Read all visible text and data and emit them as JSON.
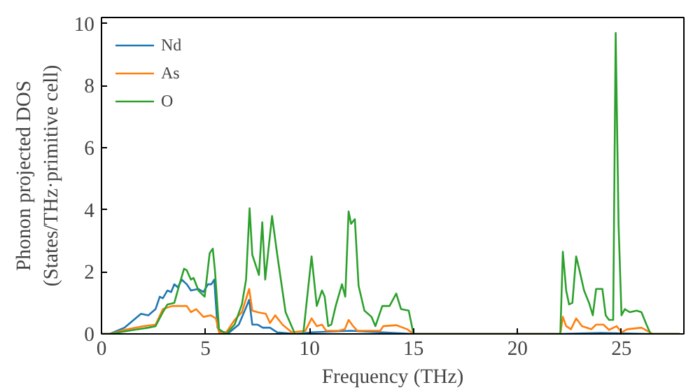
{
  "chart_data": {
    "type": "line",
    "xlabel": "Frequency (THz)",
    "ylabel": "Phonon projected DOS\n(States/THz·primitive cell)",
    "xlim": [
      0,
      28
    ],
    "ylim": [
      0,
      10.2
    ],
    "xticks": [
      0,
      5,
      10,
      15,
      20,
      25
    ],
    "yticks": [
      0,
      2,
      4,
      6,
      8,
      10
    ],
    "grid": false,
    "legend": "top left",
    "series": [
      {
        "name": "Nd",
        "color": "#1f77b4",
        "x": [
          0,
          0.4,
          1.1,
          1.9,
          2.25,
          2.6,
          2.8,
          2.95,
          3.17,
          3.35,
          3.5,
          3.67,
          3.86,
          4.1,
          4.3,
          4.66,
          4.9,
          5.12,
          5.28,
          5.42,
          5.58,
          5.8,
          6.15,
          6.6,
          6.95,
          7.1,
          7.25,
          7.5,
          7.75,
          8.1,
          8.45,
          9.35,
          10.1,
          12.0,
          15.0,
          22.0,
          24.0,
          26.4,
          27.8
        ],
        "values": [
          0,
          0,
          0.2,
          0.65,
          0.6,
          0.8,
          1.2,
          1.15,
          1.4,
          1.35,
          1.6,
          1.5,
          1.75,
          1.6,
          1.4,
          1.45,
          1.35,
          1.6,
          1.6,
          1.75,
          0.2,
          0.05,
          0.05,
          0.3,
          0.85,
          1.1,
          0.3,
          0.3,
          0.2,
          0.2,
          0.05,
          0,
          0.05,
          0.1,
          0,
          0,
          0.03,
          0,
          0
        ]
      },
      {
        "name": "As",
        "color": "#ff7f0e",
        "x": [
          0,
          0.4,
          1.1,
          2.0,
          2.6,
          2.95,
          3.4,
          4.1,
          4.3,
          4.55,
          4.9,
          5.25,
          5.5,
          5.65,
          6.0,
          6.4,
          6.75,
          7.1,
          7.25,
          7.5,
          7.9,
          8.1,
          8.35,
          8.7,
          9.15,
          9.8,
          10.1,
          10.35,
          10.6,
          10.8,
          11.4,
          11.7,
          11.88,
          12.1,
          12.3,
          13.4,
          13.55,
          14.17,
          14.7,
          15.0,
          22.06,
          22.18,
          22.34,
          22.57,
          22.82,
          23.1,
          23.55,
          23.78,
          24.13,
          24.4,
          24.77,
          25.0,
          25.27,
          25.96,
          26.37,
          26.5,
          27.8
        ],
        "values": [
          0,
          0,
          0.13,
          0.25,
          0.3,
          0.8,
          0.9,
          0.9,
          0.7,
          0.8,
          0.55,
          0.6,
          0.5,
          0.05,
          0.05,
          0.45,
          0.7,
          1.45,
          0.75,
          0.7,
          0.65,
          0.35,
          0.6,
          0.3,
          0.05,
          0.1,
          0.5,
          0.25,
          0.3,
          0.1,
          0.1,
          0.15,
          0.45,
          0.25,
          0.1,
          0.1,
          0.25,
          0.28,
          0.15,
          0,
          0,
          0.55,
          0.25,
          0.15,
          0.5,
          0.25,
          0.15,
          0.3,
          0.3,
          0.13,
          0.25,
          0.05,
          0.15,
          0.2,
          0.05,
          0,
          0
        ]
      },
      {
        "name": "O",
        "color": "#2ca02c",
        "x": [
          0,
          0.4,
          1.55,
          2.25,
          2.6,
          2.95,
          3.17,
          3.5,
          3.75,
          3.97,
          4.1,
          4.3,
          4.43,
          4.66,
          4.96,
          5.2,
          5.35,
          5.46,
          5.65,
          6.0,
          6.4,
          6.75,
          6.95,
          7.12,
          7.25,
          7.57,
          7.73,
          7.87,
          8.2,
          8.45,
          8.85,
          9.3,
          9.7,
          10.1,
          10.35,
          10.6,
          10.73,
          10.9,
          11.05,
          11.26,
          11.56,
          11.72,
          11.88,
          12.0,
          12.18,
          12.36,
          12.64,
          12.98,
          13.17,
          13.5,
          13.85,
          14.17,
          14.4,
          14.77,
          15.0,
          22.06,
          22.18,
          22.34,
          22.48,
          22.64,
          22.82,
          22.98,
          23.2,
          23.44,
          23.62,
          23.78,
          24.08,
          24.24,
          24.4,
          24.6,
          24.72,
          24.86,
          25.0,
          25.16,
          25.4,
          25.73,
          25.96,
          26.2,
          26.4,
          27.8
        ],
        "values": [
          0,
          0,
          0.13,
          0.2,
          0.25,
          0.7,
          0.95,
          1.0,
          1.6,
          2.1,
          2.05,
          1.75,
          1.8,
          1.4,
          1.2,
          2.6,
          2.75,
          2.0,
          0.15,
          0,
          0.3,
          0.95,
          1.75,
          4.05,
          2.55,
          1.9,
          3.6,
          1.75,
          3.8,
          2.55,
          0.7,
          0,
          0,
          2.5,
          0.9,
          1.4,
          1.2,
          0.25,
          0.3,
          0.9,
          1.6,
          1.2,
          3.95,
          3.55,
          3.7,
          1.55,
          0.75,
          0.55,
          0.25,
          0.9,
          0.9,
          1.3,
          0.8,
          0.75,
          0,
          0,
          2.65,
          1.4,
          0.95,
          1.0,
          2.5,
          2.05,
          1.4,
          1.0,
          0.6,
          1.45,
          1.45,
          0.6,
          0.45,
          0.45,
          9.7,
          3.5,
          0.6,
          0.8,
          0.7,
          0.75,
          0.7,
          0.3,
          0,
          0
        ]
      }
    ]
  }
}
